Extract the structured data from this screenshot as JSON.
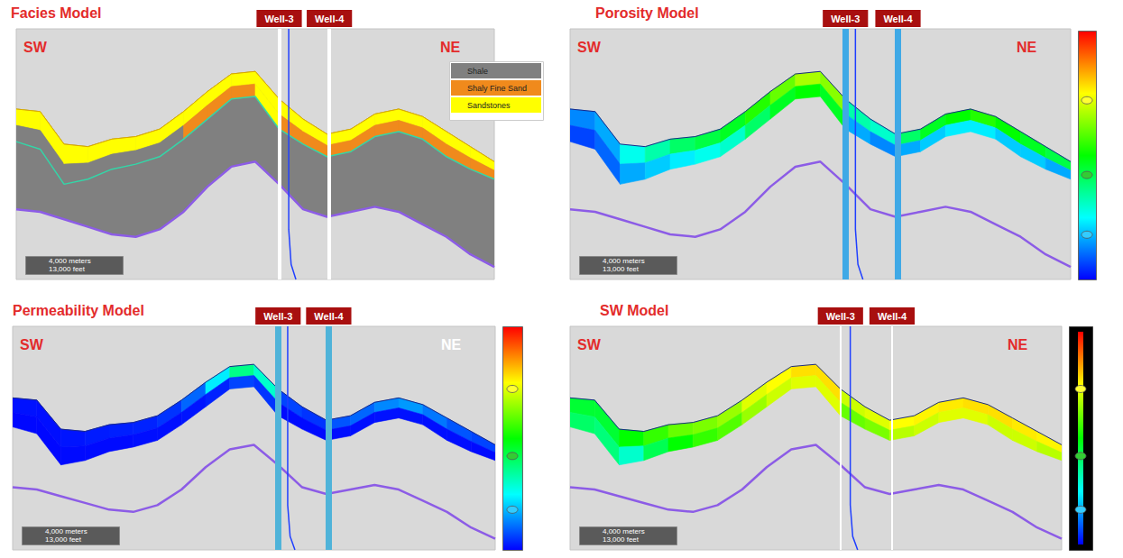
{
  "chart_data": {
    "type": "cross_section",
    "xlim": [
      0,
      100
    ],
    "ylim": [
      0,
      100
    ],
    "tick_labels": false,
    "x": [
      0,
      5,
      10,
      15,
      20,
      25,
      30,
      35,
      40,
      45,
      50,
      55,
      60,
      65,
      70,
      75,
      80,
      85,
      90,
      95,
      100
    ],
    "horizons": {
      "top": [
        68,
        67,
        54,
        53,
        56,
        57,
        60,
        67,
        75,
        82,
        83,
        72,
        64,
        58,
        60,
        66,
        68,
        65,
        59,
        53,
        47
      ],
      "base": [
        55,
        52,
        38,
        40,
        44,
        46,
        49,
        56,
        64,
        72,
        73,
        60,
        54,
        49,
        51,
        57,
        59,
        56,
        49,
        44,
        40
      ],
      "deep": [
        28,
        27,
        24,
        21,
        18,
        17,
        20,
        27,
        37,
        45,
        47,
        38,
        28,
        25,
        27,
        29,
        27,
        22,
        17,
        10,
        5
      ],
      "base_color": "#33d6a8",
      "deep_color": "#8c5ce6"
    },
    "wells": [
      {
        "name": "Well-3",
        "x": 55,
        "trajectory": [
          [
            57,
            100
          ],
          [
            57,
            20
          ],
          [
            57.5,
            6
          ],
          [
            58.5,
            0
          ]
        ],
        "trajectory_color": "#1f3fff"
      },
      {
        "name": "Well-4",
        "x": 65.5
      }
    ],
    "scale_bar": [
      "4,000 meters",
      "13,000 feet"
    ],
    "panels": [
      {
        "title": "Facies Model",
        "type": "facies",
        "labels": [
          {
            "text": "SW",
            "color": "#e32b2b"
          },
          {
            "text": "NE",
            "color": "#e32b2b"
          }
        ],
        "well_color": "#ffffff",
        "background_facies": "Shale",
        "legend": [
          {
            "name": "Shale",
            "color": "#808080"
          },
          {
            "name": "Shaly Fine Sand",
            "color": "#f08a1c"
          },
          {
            "name": "Sandstones",
            "color": "#ffff00"
          }
        ],
        "upper": [
          "Sandstones",
          "Sandstones",
          "Sandstones",
          "Sandstones",
          "Sandstones",
          "Sandstones",
          "Sandstones",
          "Sandstones",
          "Sandstones",
          "Sandstones",
          "Sandstones",
          "Sandstones",
          "Sandstones",
          "Sandstones",
          "Sandstones",
          "Sandstones",
          "Sandstones",
          "Sandstones",
          "Sandstones",
          "Sandstones"
        ],
        "lower": [
          "Shale",
          "Shale",
          "Shale",
          "Shale",
          "Shale",
          "Shale",
          "Shale",
          "Shaly Fine Sand",
          "Shaly Fine Sand",
          "Shaly Fine Sand",
          "Sandstones",
          "Shaly Fine Sand",
          "Shaly Fine Sand",
          "Shaly Fine Sand",
          "Shaly Fine Sand",
          "Shaly Fine Sand",
          "Shaly Fine Sand",
          "Shaly Fine Sand",
          "Shaly Fine Sand",
          "Shaly Fine Sand"
        ]
      },
      {
        "title": "Porosity Model",
        "type": "property",
        "labels": [
          {
            "text": "SW",
            "color": "#e32b2b"
          },
          {
            "text": "NE",
            "color": "#e32b2b"
          }
        ],
        "well_color": "#3fa9e6",
        "color_range": [
          0,
          0.3
        ],
        "upper": [
          0.04,
          0.05,
          0.08,
          0.1,
          0.12,
          0.13,
          0.14,
          0.16,
          0.18,
          0.2,
          0.19,
          0.1,
          0.09,
          0.12,
          0.14,
          0.15,
          0.16,
          0.15,
          0.14,
          0.13
        ],
        "lower": [
          0.02,
          0.03,
          0.05,
          0.06,
          0.07,
          0.08,
          0.09,
          0.12,
          0.14,
          0.15,
          0.14,
          0.05,
          0.04,
          0.05,
          0.06,
          0.07,
          0.07,
          0.06,
          0.06,
          0.05
        ]
      },
      {
        "title": "Permeability Model",
        "type": "property",
        "labels": [
          {
            "text": "SW",
            "color": "#e32b2b"
          },
          {
            "text": "NE",
            "color": "#ffffff"
          }
        ],
        "well_color": "#4fb3d9",
        "color_range": [
          0,
          3000
        ],
        "upper": [
          50,
          40,
          60,
          80,
          90,
          100,
          150,
          300,
          700,
          1100,
          900,
          200,
          150,
          250,
          300,
          400,
          450,
          350,
          250,
          200
        ],
        "lower": [
          20,
          20,
          30,
          30,
          30,
          40,
          40,
          60,
          100,
          200,
          150,
          30,
          30,
          40,
          40,
          50,
          50,
          40,
          40,
          30
        ]
      },
      {
        "title": "SW Model",
        "type": "property",
        "labels": [
          {
            "text": "SW",
            "color": "#e32b2b"
          },
          {
            "text": "NE",
            "color": "#e32b2b"
          }
        ],
        "well_color": "#ffffff",
        "color_range": [
          0,
          1
        ],
        "upper": [
          0.45,
          0.45,
          0.5,
          0.55,
          0.6,
          0.62,
          0.65,
          0.72,
          0.75,
          0.78,
          0.78,
          0.7,
          0.72,
          0.75,
          0.76,
          0.77,
          0.78,
          0.78,
          0.77,
          0.76
        ],
        "lower": [
          0.4,
          0.38,
          0.3,
          0.42,
          0.5,
          0.55,
          0.58,
          0.65,
          0.7,
          0.72,
          0.72,
          0.6,
          0.62,
          0.68,
          0.7,
          0.72,
          0.72,
          0.7,
          0.7,
          0.68
        ]
      }
    ]
  }
}
